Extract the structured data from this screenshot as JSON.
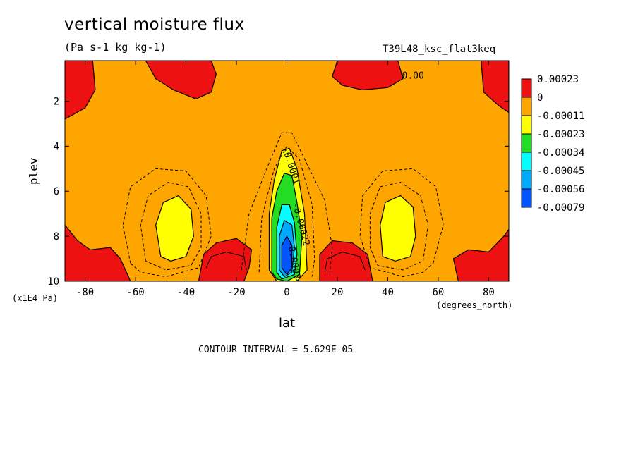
{
  "title": "vertical moisture flux",
  "units": "(Pa s-1 kg kg-1)",
  "run_id": "T39L48_ksc_flat3keq",
  "contour_interval": "CONTOUR INTERVAL = 5.629E-05",
  "chart_data": {
    "type": "heatmap",
    "xlabel": "lat",
    "xunits": "(degrees_north)",
    "ylabel": "plev",
    "yunits": "(x1E4 Pa)",
    "xlim": [
      -88,
      88
    ],
    "ylim": [
      0.2,
      10
    ],
    "y_inverted": true,
    "x_ticks": [
      -80,
      -60,
      -40,
      -20,
      0,
      20,
      40,
      60,
      80
    ],
    "x_tick_labels": [
      "-80",
      "-60",
      "-40",
      "-20",
      "0",
      "20",
      "40",
      "60",
      "80"
    ],
    "y_ticks": [
      2,
      4,
      6,
      8,
      10
    ],
    "y_tick_labels": [
      "2",
      "4",
      "6",
      "8",
      "10"
    ],
    "legend": {
      "placement": "right",
      "levels": [
        {
          "label": "0.00023",
          "color": "#ee1111"
        },
        {
          "label": "0",
          "color": "#ffa500"
        },
        {
          "label": "-0.00011",
          "color": "#ffff00"
        },
        {
          "label": "-0.00023",
          "color": "#22dd22"
        },
        {
          "label": "-0.00034",
          "color": "#00ffff"
        },
        {
          "label": "-0.00045",
          "color": "#00aaff"
        },
        {
          "label": "-0.00056",
          "color": "#0055ff"
        },
        {
          "label": "-0.00079",
          "color": ""
        }
      ]
    },
    "background_color": "#ffa500",
    "regions": [
      {
        "level": 0.00023,
        "color": "#ee1111",
        "points": [
          [
            -88,
            0.2
          ],
          [
            -77,
            0.2
          ],
          [
            -76,
            1.5
          ],
          [
            -80,
            2.3
          ],
          [
            -88,
            2.8
          ]
        ]
      },
      {
        "level": 0.00023,
        "color": "#ee1111",
        "points": [
          [
            -56,
            0.2
          ],
          [
            -30,
            0.2
          ],
          [
            -28,
            0.8
          ],
          [
            -30,
            1.6
          ],
          [
            -36,
            1.9
          ],
          [
            -45,
            1.5
          ],
          [
            -52,
            1.0
          ]
        ]
      },
      {
        "level": 0.00023,
        "color": "#ee1111",
        "points": [
          [
            20,
            0.2
          ],
          [
            44,
            0.2
          ],
          [
            46,
            1.0
          ],
          [
            40,
            1.4
          ],
          [
            30,
            1.5
          ],
          [
            22,
            1.3
          ],
          [
            18,
            0.9
          ]
        ]
      },
      {
        "level": 0.00023,
        "color": "#ee1111",
        "points": [
          [
            77,
            0.2
          ],
          [
            88,
            0.2
          ],
          [
            88,
            2.5
          ],
          [
            84,
            2.2
          ],
          [
            78,
            1.6
          ]
        ]
      },
      {
        "level": 0.00023,
        "color": "#ee1111",
        "points": [
          [
            -88,
            7.5
          ],
          [
            -83,
            8.2
          ],
          [
            -78,
            8.6
          ],
          [
            -70,
            8.5
          ],
          [
            -66,
            9.0
          ],
          [
            -62,
            10
          ],
          [
            -88,
            10
          ]
        ]
      },
      {
        "level": 0.00023,
        "color": "#ee1111",
        "points": [
          [
            -35,
            10
          ],
          [
            -33,
            8.8
          ],
          [
            -28,
            8.3
          ],
          [
            -20,
            8.1
          ],
          [
            -14,
            8.6
          ],
          [
            -15,
            9.4
          ],
          [
            -17,
            10
          ]
        ]
      },
      {
        "level": 0.00023,
        "color": "#ee1111",
        "points": [
          [
            13,
            10
          ],
          [
            13,
            8.8
          ],
          [
            18,
            8.2
          ],
          [
            26,
            8.3
          ],
          [
            32,
            8.8
          ],
          [
            34,
            10
          ]
        ]
      },
      {
        "level": 0.00023,
        "color": "#ee1111",
        "points": [
          [
            68,
            10
          ],
          [
            66,
            9.0
          ],
          [
            72,
            8.6
          ],
          [
            80,
            8.7
          ],
          [
            86,
            8.0
          ],
          [
            88,
            7.7
          ],
          [
            88,
            10
          ]
        ]
      },
      {
        "level": -0.00011,
        "color": "#ffff00",
        "points": [
          [
            -50,
            8.9
          ],
          [
            -52,
            7.5
          ],
          [
            -49,
            6.5
          ],
          [
            -43,
            6.2
          ],
          [
            -38,
            6.8
          ],
          [
            -37,
            8.0
          ],
          [
            -40,
            8.9
          ],
          [
            -46,
            9.1
          ]
        ]
      },
      {
        "level": -0.00011,
        "color": "#ffff00",
        "points": [
          [
            38,
            8.9
          ],
          [
            37,
            7.5
          ],
          [
            39,
            6.5
          ],
          [
            45,
            6.2
          ],
          [
            50,
            6.7
          ],
          [
            51,
            8.0
          ],
          [
            49,
            8.9
          ],
          [
            43,
            9.1
          ]
        ]
      },
      {
        "level": -0.00011,
        "color": "#ffff00",
        "points": [
          [
            -7,
            9.5
          ],
          [
            -7,
            7.0
          ],
          [
            -5,
            5.5
          ],
          [
            -2,
            4.2
          ],
          [
            1,
            4.1
          ],
          [
            4,
            5.0
          ],
          [
            7,
            7.0
          ],
          [
            8,
            9.5
          ],
          [
            4,
            10
          ],
          [
            -4,
            10
          ]
        ]
      },
      {
        "level": -0.00023,
        "color": "#22dd22",
        "points": [
          [
            -6,
            9.6
          ],
          [
            -6,
            7.2
          ],
          [
            -4,
            6.0
          ],
          [
            -1,
            5.2
          ],
          [
            2,
            5.3
          ],
          [
            4,
            6.5
          ],
          [
            6,
            8.0
          ],
          [
            5,
            9.7
          ],
          [
            0,
            10
          ],
          [
            -4,
            9.9
          ]
        ]
      },
      {
        "level": -0.00034,
        "color": "#00ffff",
        "points": [
          [
            -4,
            9.6
          ],
          [
            -4,
            7.6
          ],
          [
            -2,
            6.6
          ],
          [
            1,
            6.6
          ],
          [
            3,
            7.4
          ],
          [
            4,
            8.8
          ],
          [
            3,
            9.7
          ],
          [
            -2,
            9.9
          ]
        ]
      },
      {
        "level": -0.00045,
        "color": "#00aaff",
        "points": [
          [
            -3,
            9.5
          ],
          [
            -3,
            8.0
          ],
          [
            -1,
            7.3
          ],
          [
            2,
            7.5
          ],
          [
            3,
            8.5
          ],
          [
            2,
            9.6
          ],
          [
            -1,
            9.8
          ]
        ]
      },
      {
        "level": -0.00056,
        "color": "#0055ff",
        "points": [
          [
            -2,
            9.4
          ],
          [
            -2,
            8.4
          ],
          [
            0,
            8.0
          ],
          [
            2,
            8.4
          ],
          [
            2,
            9.4
          ],
          [
            0,
            9.7
          ]
        ]
      }
    ],
    "dashed_contours": [
      {
        "points": [
          [
            -62,
            9.2
          ],
          [
            -65,
            7.5
          ],
          [
            -62,
            5.8
          ],
          [
            -52,
            5.0
          ],
          [
            -40,
            5.1
          ],
          [
            -32,
            6.2
          ],
          [
            -30,
            8.0
          ],
          [
            -35,
            9.4
          ],
          [
            -48,
            9.8
          ],
          [
            -58,
            9.6
          ],
          [
            -62,
            9.2
          ]
        ]
      },
      {
        "points": [
          [
            -56,
            9.1
          ],
          [
            -58,
            7.5
          ],
          [
            -55,
            6.2
          ],
          [
            -47,
            5.6
          ],
          [
            -39,
            5.8
          ],
          [
            -34,
            7.0
          ],
          [
            -34,
            8.5
          ],
          [
            -38,
            9.3
          ],
          [
            -48,
            9.5
          ],
          [
            -56,
            9.1
          ]
        ]
      },
      {
        "points": [
          [
            58,
            9.2
          ],
          [
            62,
            7.5
          ],
          [
            59,
            5.8
          ],
          [
            50,
            5.0
          ],
          [
            38,
            5.1
          ],
          [
            30,
            6.2
          ],
          [
            29,
            8.0
          ],
          [
            33,
            9.4
          ],
          [
            46,
            9.8
          ],
          [
            54,
            9.6
          ],
          [
            58,
            9.2
          ]
        ]
      },
      {
        "points": [
          [
            54,
            9.1
          ],
          [
            56,
            7.5
          ],
          [
            53,
            6.2
          ],
          [
            45,
            5.6
          ],
          [
            37,
            5.8
          ],
          [
            33,
            7.0
          ],
          [
            33,
            8.5
          ],
          [
            36,
            9.3
          ],
          [
            46,
            9.5
          ],
          [
            54,
            9.1
          ]
        ]
      },
      {
        "points": [
          [
            -18,
            9.5
          ],
          [
            -15,
            7.0
          ],
          [
            -8,
            5.0
          ],
          [
            -2,
            3.4
          ],
          [
            2,
            3.4
          ],
          [
            8,
            4.8
          ],
          [
            15,
            6.4
          ],
          [
            18,
            8.5
          ],
          [
            17,
            9.6
          ]
        ]
      },
      {
        "points": [
          [
            -11,
            9.6
          ],
          [
            -10,
            7.2
          ],
          [
            -5,
            5.0
          ],
          [
            0,
            4.0
          ],
          [
            5,
            4.6
          ],
          [
            10,
            6.6
          ],
          [
            11,
            9.0
          ],
          [
            10,
            9.8
          ]
        ]
      }
    ],
    "solid_contours": [
      {
        "points": [
          [
            -32,
            9.4
          ],
          [
            -30,
            8.9
          ],
          [
            -24,
            8.7
          ],
          [
            -17,
            8.9
          ],
          [
            -16,
            9.5
          ]
        ]
      },
      {
        "points": [
          [
            15,
            9.6
          ],
          [
            16,
            9.0
          ],
          [
            22,
            8.7
          ],
          [
            29,
            8.9
          ],
          [
            31,
            9.5
          ]
        ]
      }
    ],
    "contour_labels": [
      {
        "text": "0.00",
        "x": 50,
        "y": 1.0,
        "rotate": 0
      },
      {
        "text": "-0.0001",
        "x": 0.5,
        "y": 4.9,
        "rotate": 72
      },
      {
        "text": "-0.00022",
        "x": 4.5,
        "y": 7.5,
        "rotate": 75
      },
      {
        "text": "-0.00034",
        "x": 1.8,
        "y": 9.2,
        "rotate": 80
      }
    ]
  }
}
